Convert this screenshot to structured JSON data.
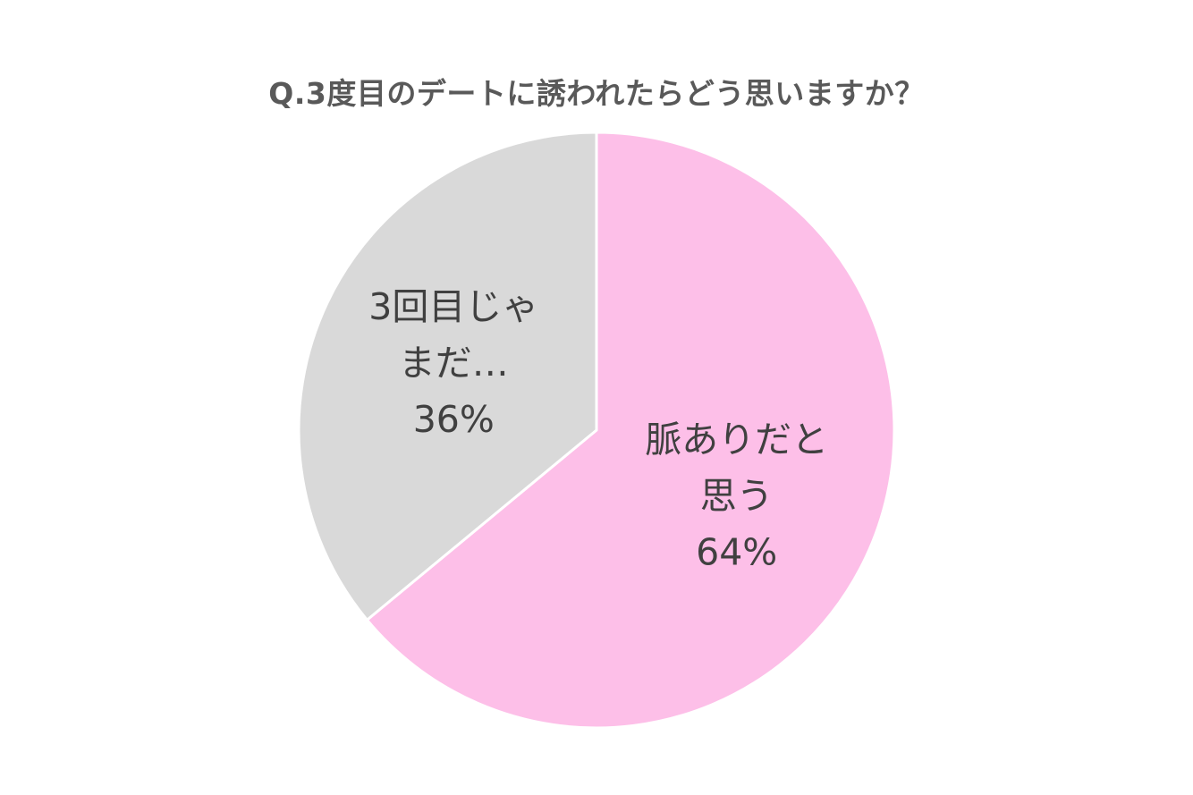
{
  "chart_data": {
    "type": "pie",
    "title": "Q.3度目のデートに誘われたらどう思いますか？",
    "slices": [
      {
        "label": "脈ありだと思う",
        "value": 64,
        "percent_text": "64%",
        "color": "#FDBFE8",
        "label_lines": [
          "脈ありだと",
          "思う",
          "64%"
        ]
      },
      {
        "label": "3回目じゃまだ…",
        "value": 36,
        "percent_text": "36%",
        "color": "#D9D9D9",
        "label_lines": [
          "3回目じゃ",
          "まだ…",
          "36%"
        ]
      }
    ],
    "start_angle": "12 o'clock",
    "direction": "clockwise",
    "slice_border_color": "#FFFFFF",
    "legend": "none",
    "data_labels": "inside"
  }
}
